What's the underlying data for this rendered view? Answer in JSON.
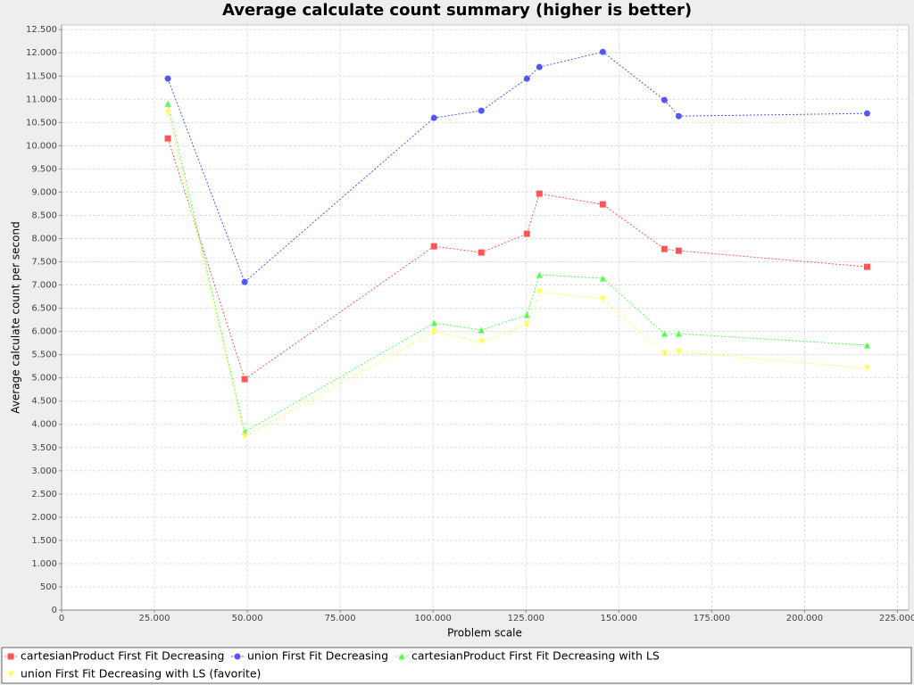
{
  "chart_data": {
    "type": "line",
    "title": "Average calculate count summary (higher is better)",
    "x_label": "Problem scale",
    "y_label": "Average calculate count per second",
    "x": [
      28606,
      49279,
      100240,
      112980,
      125240,
      128606,
      145673,
      162260,
      166106,
      216827
    ],
    "series": [
      {
        "name": "cartesianProduct First Fit Decreasing",
        "color": "#ff5555",
        "marker": "square",
        "values": [
          10157,
          4973,
          7834,
          7700,
          8103,
          8967,
          8737,
          7776,
          7738,
          7392
        ]
      },
      {
        "name": "union First Fit Decreasing",
        "color": "#5555ff",
        "marker": "circle",
        "values": [
          11444,
          7066,
          10599,
          10753,
          11444,
          11694,
          12020,
          10983,
          10637,
          10695
        ]
      },
      {
        "name": "cartesianProduct First Fit Decreasing with LS",
        "color": "#55ff55",
        "marker": "triangle-up",
        "values": [
          10906,
          3840,
          6183,
          6030,
          6356,
          7220,
          7143,
          5952,
          5952,
          5703
        ]
      },
      {
        "name": "union First Fit Decreasing with LS (favorite)",
        "color": "#ffff55",
        "marker": "triangle-down",
        "values": [
          10714,
          3744,
          5991,
          5780,
          6145,
          6855,
          6702,
          5530,
          5568,
          5204
        ]
      }
    ],
    "xlim": [
      0,
      228000
    ],
    "xticks": [
      0,
      {
        "value": 25000,
        "label": "25.000"
      },
      {
        "value": 50000,
        "label": "50.000"
      },
      {
        "value": 75000,
        "label": "75.000"
      },
      {
        "value": 100000,
        "label": "100.000"
      },
      {
        "value": 125000,
        "label": "125.000"
      },
      {
        "value": 150000,
        "label": "150.000"
      },
      {
        "value": 175000,
        "label": "175.000"
      },
      {
        "value": 200000,
        "label": "200.000"
      },
      {
        "value": 225000,
        "label": "225.000"
      }
    ],
    "ylim": [
      0,
      12600
    ],
    "yticks": [
      0,
      {
        "value": 500,
        "label": "500"
      },
      {
        "value": 1000,
        "label": "1.000"
      },
      {
        "value": 1500,
        "label": "1.500"
      },
      {
        "value": 2000,
        "label": "2.000"
      },
      {
        "value": 2500,
        "label": "2.500"
      },
      {
        "value": 3000,
        "label": "3.000"
      },
      {
        "value": 3500,
        "label": "3.500"
      },
      {
        "value": 4000,
        "label": "4.000"
      },
      {
        "value": 4500,
        "label": "4.500"
      },
      {
        "value": 5000,
        "label": "5.000"
      },
      {
        "value": 5500,
        "label": "5.500"
      },
      {
        "value": 6000,
        "label": "6.000"
      },
      {
        "value": 6500,
        "label": "6.500"
      },
      {
        "value": 7000,
        "label": "7.000"
      },
      {
        "value": 7500,
        "label": "7.500"
      },
      {
        "value": 8000,
        "label": "8.000"
      },
      {
        "value": 8500,
        "label": "8.500"
      },
      {
        "value": 9000,
        "label": "9.000"
      },
      {
        "value": 9500,
        "label": "9.500"
      },
      {
        "value": 10000,
        "label": "10.000"
      },
      {
        "value": 10500,
        "label": "10.500"
      },
      {
        "value": 11000,
        "label": "11.000"
      },
      {
        "value": 11500,
        "label": "11.500"
      },
      {
        "value": 12000,
        "label": "12.000"
      },
      {
        "value": 12500,
        "label": "12.500"
      }
    ],
    "grid": true,
    "legend": "bottom"
  }
}
